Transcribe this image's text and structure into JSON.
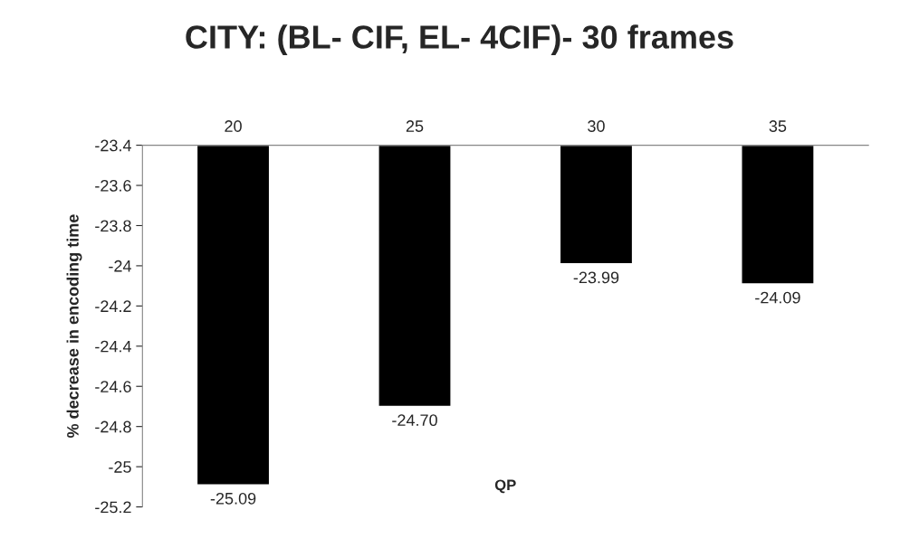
{
  "chart_data": {
    "type": "bar",
    "title": "CITY: (BL- CIF, EL- 4CIF)- 30 frames",
    "xlabel": "QP",
    "ylabel": "% decrease in encoding time",
    "categories": [
      "20",
      "25",
      "30",
      "35"
    ],
    "values": [
      -25.09,
      -24.7,
      -23.99,
      -24.09
    ],
    "color": "#000000",
    "value_labels": [
      "-25.09",
      "-24.70",
      "-23.99",
      "-24.09"
    ],
    "ylim": [
      -25.2,
      -23.4
    ],
    "yticks": [
      -25.2,
      -25,
      -24.8,
      -24.6,
      -24.4,
      -24.2,
      -24,
      -23.8,
      -23.6,
      -23.4
    ],
    "grid": false,
    "legend": false
  }
}
